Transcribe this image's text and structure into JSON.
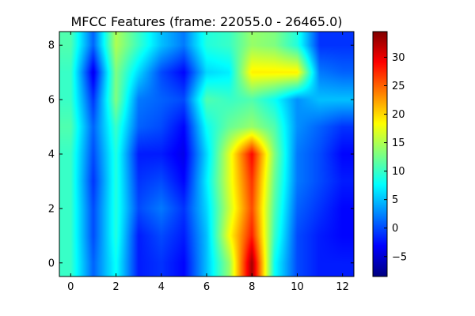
{
  "chart_data": {
    "type": "heatmap",
    "title": "MFCC Features (frame: 22055.0 - 26465.0)",
    "xlabel": "",
    "ylabel": "",
    "x_ticks": [
      0,
      2,
      4,
      6,
      8,
      10,
      12
    ],
    "y_ticks": [
      0,
      2,
      4,
      6,
      8
    ],
    "xlim": [
      -0.5,
      12.5
    ],
    "ylim": [
      -0.5,
      8.5
    ],
    "colormap": "jet",
    "interpolation": "smooth",
    "colorbar": {
      "vmin": -8.5,
      "vmax": 34.5,
      "ticks": [
        -5,
        0,
        5,
        10,
        15,
        20,
        25,
        30
      ]
    },
    "columns": 13,
    "rows": 9,
    "values": [
      [
        10,
        1,
        8,
        -2,
        -1,
        -3,
        5,
        14,
        33,
        8,
        0,
        -2,
        -2
      ],
      [
        10,
        0,
        9,
        -2,
        0,
        -2,
        5,
        18,
        28,
        10,
        0,
        -2,
        -3
      ],
      [
        10,
        0,
        9,
        0,
        2,
        -1,
        6,
        16,
        26,
        11,
        1,
        -1,
        -3
      ],
      [
        10,
        -1,
        9,
        -1,
        0,
        -3,
        7,
        17,
        27,
        12,
        2,
        0,
        -2
      ],
      [
        10,
        0,
        9,
        -2,
        -2,
        -4,
        6,
        17,
        29,
        13,
        2,
        0,
        -3
      ],
      [
        11,
        1,
        10,
        1,
        0,
        -3,
        8,
        12,
        14,
        11,
        3,
        1,
        -1
      ],
      [
        10,
        -1,
        13,
        2,
        1,
        0,
        11,
        10,
        11,
        8,
        3,
        5,
        5
      ],
      [
        10,
        -4,
        13,
        6,
        0,
        -3,
        6,
        7,
        19,
        19,
        19,
        2,
        1
      ],
      [
        11,
        1,
        15,
        10,
        5,
        2,
        9,
        10,
        14,
        13,
        9,
        -1,
        -1
      ]
    ]
  }
}
